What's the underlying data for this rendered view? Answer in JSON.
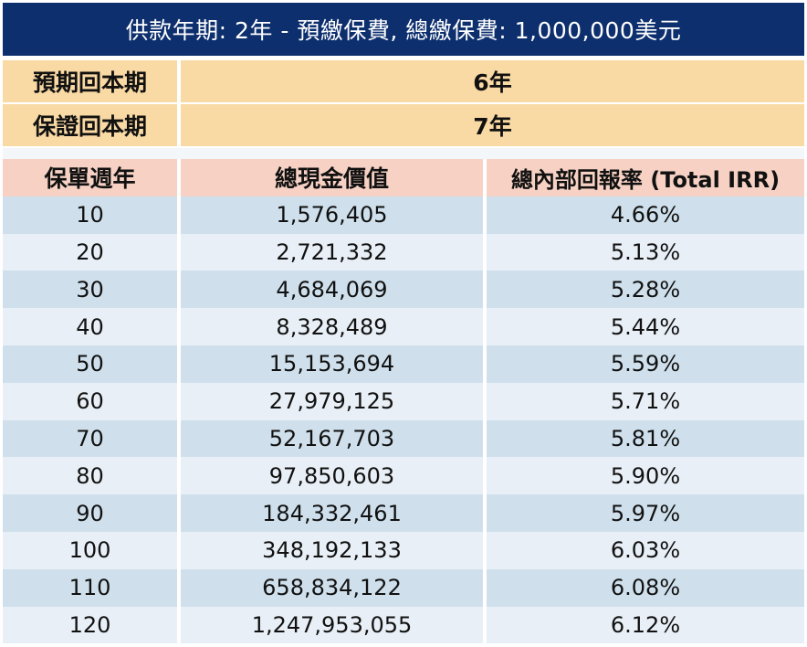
{
  "title": "供款年期: 2年 - 預繳保費, 總繳保費: 1,000,000美元",
  "summary": [
    {
      "label": "預期回本期",
      "value": "6年"
    },
    {
      "label": "保證回本期",
      "value": "7年"
    }
  ],
  "table": {
    "headers": [
      "保單週年",
      "總現金價值",
      "總內部回報率 (Total IRR)"
    ],
    "rows": [
      [
        "10",
        "1,576,405",
        "4.66%"
      ],
      [
        "20",
        "2,721,332",
        "5.13%"
      ],
      [
        "30",
        "4,684,069",
        "5.28%"
      ],
      [
        "40",
        "8,328,489",
        "5.44%"
      ],
      [
        "50",
        "15,153,694",
        "5.59%"
      ],
      [
        "60",
        "27,979,125",
        "5.71%"
      ],
      [
        "70",
        "52,167,703",
        "5.81%"
      ],
      [
        "80",
        "97,850,603",
        "5.90%"
      ],
      [
        "90",
        "184,332,461",
        "5.97%"
      ],
      [
        "100",
        "348,192,133",
        "6.03%"
      ],
      [
        "110",
        "658,834,122",
        "6.08%"
      ],
      [
        "120",
        "1,247,953,055",
        "6.12%"
      ]
    ]
  },
  "colors": {
    "title_bg": "#0d2f6e",
    "summary_bg": "#f9d9a4",
    "header_bg": "#f7d2c4",
    "row_odd_bg": "#cfe0ec",
    "row_even_bg": "#e8eff6"
  }
}
